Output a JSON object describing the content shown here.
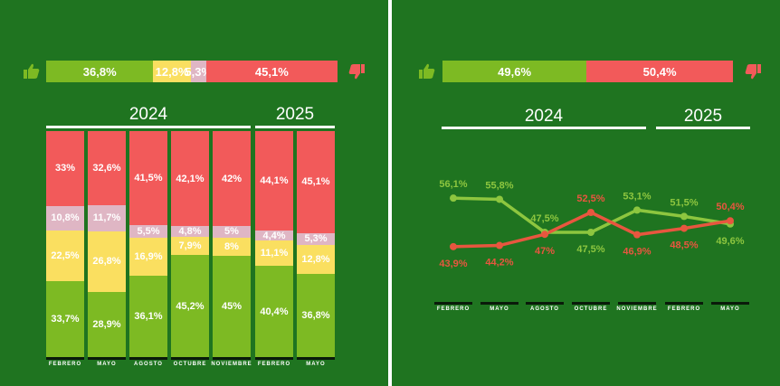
{
  "colors": {
    "background": "#1f7420",
    "green": "#7dba23",
    "yellow": "#fadf60",
    "pink": "#dfb6c4",
    "red": "#f25a5a",
    "approve_line": "#8dc63f",
    "disapprove_line": "#e8563f"
  },
  "icons": {
    "approve": "thumbs-up-icon",
    "disapprove": "thumbs-down-icon"
  },
  "left_summary": {
    "approve": "36,8%",
    "neutral": "12,8%",
    "nsnc": "5,3%",
    "disapprove": "45,1%",
    "values": [
      36.8,
      12.8,
      5.3,
      45.1
    ]
  },
  "right_summary": {
    "approve": "49,6%",
    "disapprove": "50,4%",
    "values": [
      49.6,
      50.4
    ]
  },
  "years": [
    "2024",
    "2025"
  ],
  "months": [
    "FEBRERO",
    "MAYO",
    "AGOSTO",
    "OCTUBRE",
    "NOVIEMBRE",
    "FEBRERO",
    "MAYO"
  ],
  "chart_data": [
    {
      "type": "bar",
      "stacked": true,
      "categories": [
        "FEBRERO",
        "MAYO",
        "AGOSTO",
        "OCTUBRE",
        "NOVIEMBRE",
        "FEBRERO",
        "MAYO"
      ],
      "series": [
        {
          "values": [
            33.7,
            28.9,
            36.1,
            45.2,
            45,
            40.4,
            36.8
          ],
          "labels": [
            "33,7%",
            "28,9%",
            "36,1%",
            "45,2%",
            "45%",
            "40,4%",
            "36,8%"
          ]
        },
        {
          "values": [
            22.5,
            26.8,
            16.9,
            7.9,
            8,
            11.1,
            12.8
          ],
          "labels": [
            "22,5%",
            "26,8%",
            "16,9%",
            "7,9%",
            "8%",
            "11,1%",
            "12,8%"
          ]
        },
        {
          "values": [
            10.8,
            11.7,
            5.5,
            4.8,
            5,
            4.4,
            5.3
          ],
          "labels": [
            "10,8%",
            "11,7%",
            "5,5%",
            "4,8%",
            "5%",
            "4,4%",
            "5,3%"
          ]
        },
        {
          "values": [
            33,
            32.6,
            41.5,
            42.1,
            42,
            44.1,
            45.1
          ],
          "labels": [
            "33%",
            "32,6%",
            "41,5%",
            "42,1%",
            "42%",
            "44,1%",
            "45,1%"
          ]
        }
      ],
      "ylim": [
        0,
        100
      ]
    },
    {
      "type": "line",
      "categories": [
        "FEBRERO",
        "MAYO",
        "AGOSTO",
        "OCTUBRE",
        "NOVIEMBRE",
        "FEBRERO",
        "MAYO"
      ],
      "series": [
        {
          "values": [
            56.1,
            55.8,
            47.5,
            47.5,
            53.1,
            51.5,
            49.6
          ],
          "labels": [
            "56,1%",
            "55,8%",
            "47,5%",
            "47,5%",
            "53,1%",
            "51,5%",
            "49,6%"
          ]
        },
        {
          "values": [
            43.9,
            44.2,
            47,
            52.5,
            46.9,
            48.5,
            50.4
          ],
          "labels": [
            "43,9%",
            "44,2%",
            "47%",
            "52,5%",
            "46,9%",
            "48,5%",
            "50,4%"
          ]
        }
      ]
    }
  ]
}
